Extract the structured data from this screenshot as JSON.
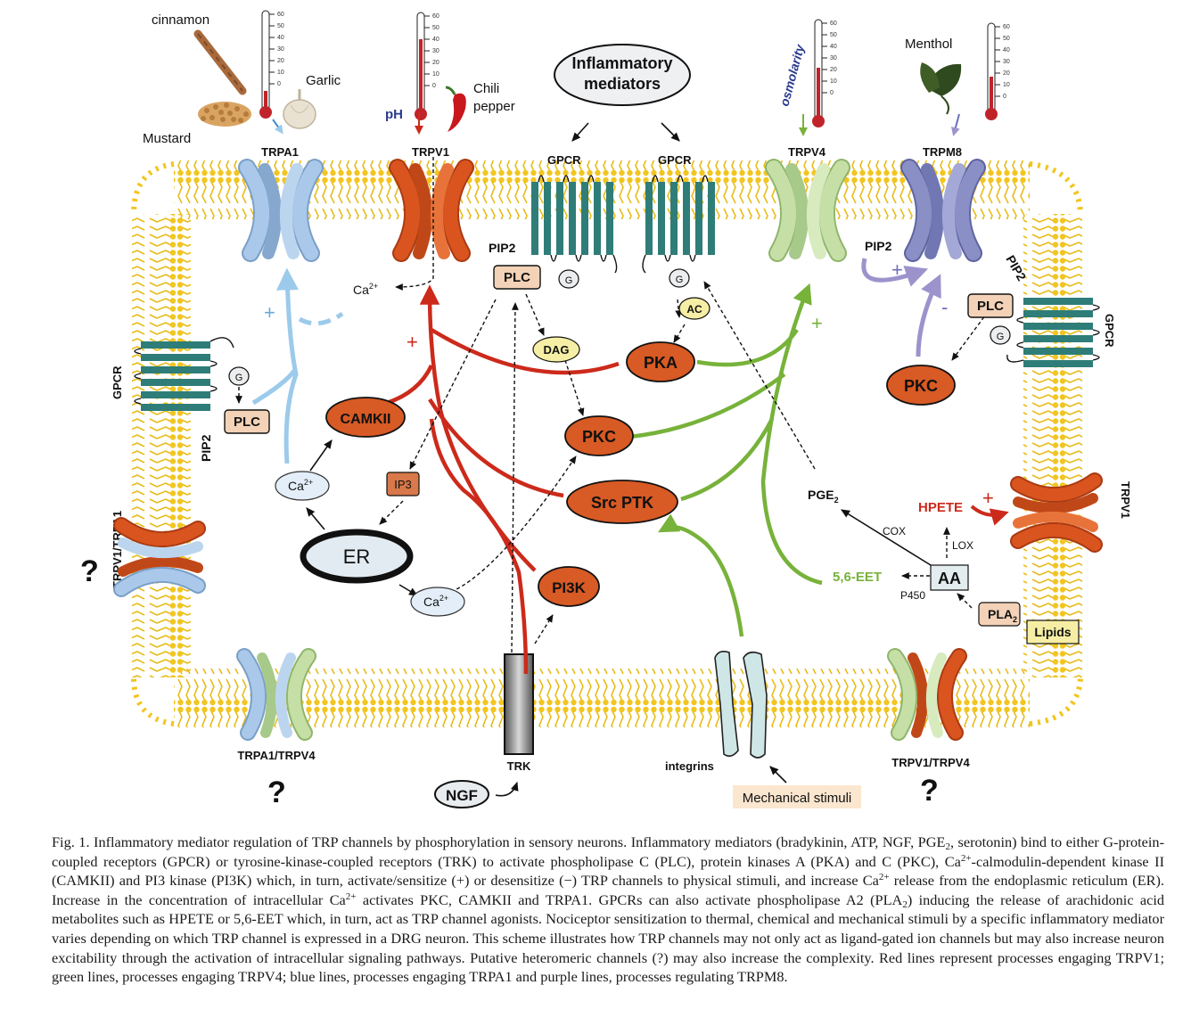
{
  "diagram": {
    "stimuli": {
      "cinnamon": "cinnamon",
      "garlic": "Garlic",
      "mustard": "Mustard",
      "ph": "pH",
      "chili_line1": "Chili",
      "chili_line2": "pepper",
      "osmolarity": "osmolarity",
      "menthol": "Menthol",
      "inflammatory_line1": "Inflammatory",
      "inflammatory_line2": "mediators",
      "ngf": "NGF",
      "mechanical": "Mechanical stimuli",
      "lipids": "Lipids"
    },
    "thermometer_ticks": [
      "60",
      "50",
      "40",
      "30",
      "20",
      "10",
      "0"
    ],
    "channels": {
      "trpa1": "TRPA1",
      "trpv1_top": "TRPV1",
      "trpv4": "TRPV4",
      "trpm8": "TRPM8",
      "trpv1_right": "TRPV1",
      "trpv1_trpa1": "TRPV1/TRPA1",
      "trpa1_trpv4": "TRPA1/TRPV4",
      "trpv1_trpv4": "TRPV1/TRPV4"
    },
    "receptors": {
      "gpcr": "GPCR",
      "pip2": "PIP2",
      "trk": "TRK",
      "integrins": "integrins",
      "g": "G"
    },
    "nodes": {
      "plc": "PLC",
      "dag": "DAG",
      "ac": "AC",
      "pka": "PKA",
      "pkc": "PKC",
      "camkii": "CAMKII",
      "src_ptk": "Src PTK",
      "pi3k": "PI3K",
      "ip3": "IP3",
      "er": "ER",
      "ca": "Ca",
      "ca_sup": "2+",
      "pge2": "PGE",
      "pge2_sub": "2",
      "hpete": "HPETE",
      "cox": "COX",
      "lox": "LOX",
      "eet": "5,6-EET",
      "aa": "AA",
      "p450": "P450",
      "pla2": "PLA",
      "pla2_sub": "2"
    },
    "signs": {
      "plus": "+",
      "minus": "-"
    },
    "question": "?"
  },
  "caption": {
    "p1": "Fig. 1. Inflammatory mediator regulation of TRP channels by phosphorylation in sensory neurons. Inflammatory mediators (bradykinin, ATP, NGF, PGE",
    "p2": ", serotonin) bind to either G-protein-coupled receptors (GPCR) or tyrosine-kinase-coupled receptors (TRK) to activate phospholipase C (PLC), protein kinases A (PKA) and C (PKC), Ca",
    "p3": "-calmodulin-dependent kinase II (CAMKII) and PI3 kinase (PI3K) which, in turn, activate/sensitize (+) or desensitize (−) TRP channels to physical stimuli, and increase Ca",
    "p4": " release from the endoplasmic reticulum (ER). Increase in the concentration of intracellular Ca",
    "p5": " activates PKC, CAMKII and TRPA1. GPCRs can also activate phospholipase A2 (PLA",
    "p6": ") inducing the release of arachidonic acid metabolites such as HPETE or 5,6-EET which, in turn, act as TRP channel agonists. Nociceptor sensitization to thermal, chemical and mechanical stimuli by a specific inflammatory mediator varies depending on which TRP channel is expressed in a DRG neuron. This scheme illustrates how TRP channels may not only act as ligand-gated ion channels but may also increase neuron excitability through the activation of intracellular signaling pathways. Putative heteromeric channels (?) may also increase the complexity. Red lines represent processes engaging TRPV1; green lines, processes engaging TRPV4; blue lines, processes engaging TRPA1 and purple lines, processes regulating TRPM8.",
    "sub2": "2",
    "sup2plus": "2+"
  },
  "colors": {
    "membrane": "#f2c521",
    "gpcr_teal": "#2f7d78",
    "trpa1_blue": "#a9c8ea",
    "trpv1_orange": "#d9541e",
    "trpv4_green": "#c6dfa6",
    "trpm8_purple": "#8a8fc6",
    "red_line": "#cc2a1b",
    "green_line": "#77b23a",
    "blue_line": "#9ccaeb",
    "purple_line": "#9c93cc",
    "kinase": "#d85a24",
    "yellow_node": "#f6eea4",
    "tan_node": "#f3d2b7"
  }
}
